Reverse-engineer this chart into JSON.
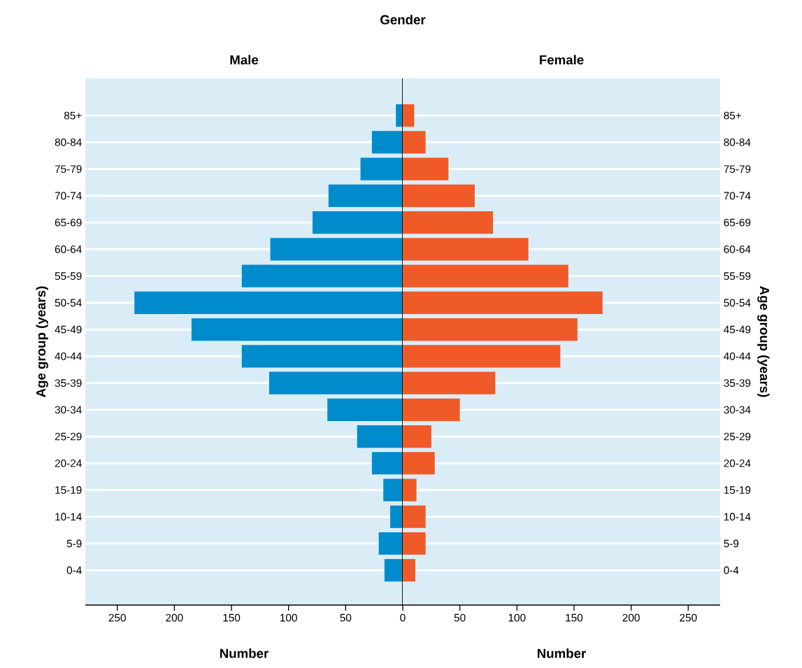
{
  "chart_data": [
    {
      "type": "bar",
      "orientation": "horizontal",
      "title": "Gender",
      "xlabel": "Number",
      "ylabel": "Age group (years)",
      "categories": [
        "85+",
        "80-84",
        "75-79",
        "70-74",
        "65-69",
        "60-64",
        "55-59",
        "50-54",
        "45-49",
        "40-44",
        "35-39",
        "30-34",
        "25-29",
        "20-24",
        "15-19",
        "10-14",
        "5-9",
        "0-4"
      ],
      "series": [
        {
          "name": "Male",
          "color": "#008ccc",
          "values": [
            6,
            27,
            37,
            65,
            79,
            116,
            141,
            235,
            185,
            141,
            117,
            66,
            40,
            27,
            17,
            11,
            21,
            16
          ]
        }
      ],
      "xlim": [
        278,
        0
      ],
      "xticks": [
        250,
        200,
        150,
        100,
        50,
        0
      ],
      "grid": "y",
      "ref_lines": [
        {
          "axis": "x",
          "value": 0,
          "color": "#000000"
        }
      ]
    },
    {
      "type": "bar",
      "orientation": "horizontal",
      "xlabel": "Number",
      "ylabel": "Age group (years)",
      "categories": [
        "85+",
        "80-84",
        "75-79",
        "70-74",
        "65-69",
        "60-64",
        "55-59",
        "50-54",
        "45-49",
        "40-44",
        "35-39",
        "30-34",
        "25-29",
        "20-24",
        "15-19",
        "10-14",
        "5-9",
        "0-4"
      ],
      "series": [
        {
          "name": "Female",
          "color": "#f05a28",
          "values": [
            10,
            20,
            40,
            63,
            79,
            110,
            145,
            175,
            153,
            138,
            81,
            50,
            25,
            28,
            12,
            20,
            20,
            11
          ]
        }
      ],
      "xlim": [
        0,
        278
      ],
      "xticks": [
        50,
        100,
        150,
        200,
        250
      ],
      "grid": "y"
    }
  ]
}
